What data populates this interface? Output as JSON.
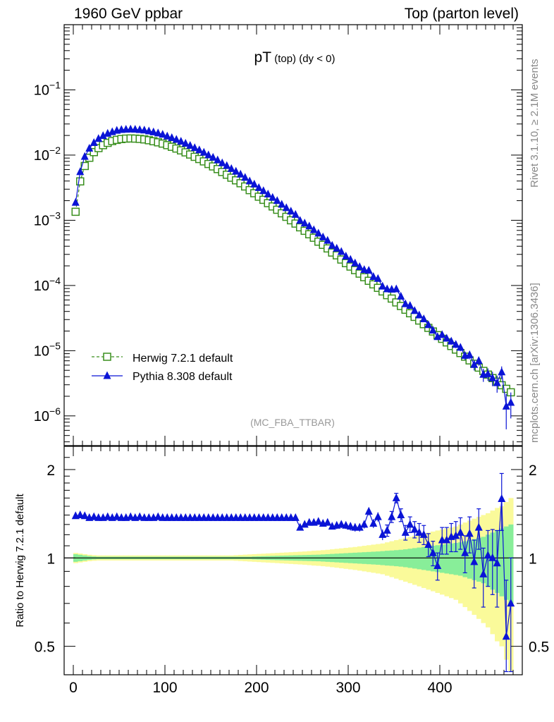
{
  "header": {
    "left": "1960 GeV ppbar",
    "right": "Top (parton level)"
  },
  "side_labels": {
    "rivet": "Rivet 3.1.10, ≥ 2.1M events",
    "mcplots": "mcplots.cern.ch [arXiv:1306.3436]"
  },
  "colors": {
    "herwig": "#3a8f1e",
    "pythia": "#0a14d6",
    "band_inner": "#88ee99",
    "band_outer": "#fafa9a"
  },
  "chart_data": [
    {
      "type": "line",
      "panel": "main",
      "title_main": "pT",
      "title_sub": "(top) (dy < 0)",
      "watermark": "(MC_FBA_TTBAR)",
      "yscale": "log",
      "xlim": [
        -10,
        490
      ],
      "ylim": [
        3.5e-07,
        1.0
      ],
      "y_ticks": [
        {
          "v": 1e-06,
          "base": "10",
          "exp": "−6"
        },
        {
          "v": 1e-05,
          "base": "10",
          "exp": "−5"
        },
        {
          "v": 0.0001,
          "base": "10",
          "exp": "−4"
        },
        {
          "v": 0.001,
          "base": "10",
          "exp": "−3"
        },
        {
          "v": 0.01,
          "base": "10",
          "exp": "−2"
        },
        {
          "v": 0.1,
          "base": "10",
          "exp": "−1"
        }
      ],
      "legend_position": "bottom-left",
      "series": [
        {
          "name": "Herwig 7.2.1 default",
          "marker": "open-square",
          "line": "dashed",
          "x": [
            2.5,
            7.5,
            12.5,
            17.5,
            22.5,
            27.5,
            32.5,
            37.5,
            42.5,
            47.5,
            52.5,
            57.5,
            62.5,
            67.5,
            72.5,
            77.5,
            82.5,
            87.5,
            92.5,
            97.5,
            102.5,
            107.5,
            112.5,
            117.5,
            122.5,
            127.5,
            132.5,
            137.5,
            142.5,
            147.5,
            152.5,
            157.5,
            162.5,
            167.5,
            172.5,
            177.5,
            182.5,
            187.5,
            192.5,
            197.5,
            202.5,
            207.5,
            212.5,
            217.5,
            222.5,
            227.5,
            232.5,
            237.5,
            242.5,
            247.5,
            252.5,
            257.5,
            262.5,
            267.5,
            272.5,
            277.5,
            282.5,
            287.5,
            292.5,
            297.5,
            302.5,
            307.5,
            312.5,
            317.5,
            322.5,
            327.5,
            332.5,
            337.5,
            342.5,
            347.5,
            352.5,
            357.5,
            362.5,
            367.5,
            372.5,
            377.5,
            382.5,
            387.5,
            392.5,
            397.5,
            402.5,
            407.5,
            412.5,
            417.5,
            422.5,
            427.5,
            432.5,
            437.5,
            442.5,
            447.5,
            452.5,
            457.5,
            462.5,
            467.5,
            472.5,
            477.5
          ],
          "y": [
            0.00135,
            0.00395,
            0.0068,
            0.0091,
            0.0111,
            0.0128,
            0.0142,
            0.0154,
            0.0164,
            0.0171,
            0.0176,
            0.0179,
            0.018,
            0.0179,
            0.0177,
            0.0174,
            0.0169,
            0.0163,
            0.0157,
            0.015,
            0.0142,
            0.0134,
            0.0126,
            0.0118,
            0.011,
            0.0102,
            0.0094,
            0.0087,
            0.008,
            0.0073,
            0.0067,
            0.0061,
            0.0055,
            0.005,
            0.0045,
            0.0041,
            0.0037,
            0.0033,
            0.0029,
            0.0026,
            0.0023,
            0.00206,
            0.00183,
            0.00163,
            0.00145,
            0.00128,
            0.00113,
            0.001,
            0.00089,
            0.00078,
            0.00069,
            0.00061,
            0.00054,
            0.00047,
            0.00042,
            0.00037,
            0.00032,
            0.00029,
            0.00025,
            0.00022,
            0.000195,
            0.000172,
            0.000152,
            0.000134,
            0.000118,
            0.000104,
            9.2e-05,
            8.1e-05,
            7.1e-05,
            6.3e-05,
            5.5e-05,
            4.85e-05,
            4.25e-05,
            3.75e-05,
            3.3e-05,
            2.9e-05,
            2.55e-05,
            2.24e-05,
            1.97e-05,
            1.73e-05,
            1.52e-05,
            1.34e-05,
            1.18e-05,
            1.04e-05,
            9.2e-06,
            8.1e-06,
            7.1e-06,
            6.3e-06,
            5.5e-06,
            4.9e-06,
            4.3e-06,
            3.8e-06,
            3.35e-06,
            2.95e-06,
            2.6e-06,
            2.3e-06
          ]
        },
        {
          "name": "Pythia 8.308 default",
          "marker": "filled-triangle",
          "line": "solid",
          "x": [
            2.5,
            7.5,
            12.5,
            17.5,
            22.5,
            27.5,
            32.5,
            37.5,
            42.5,
            47.5,
            52.5,
            57.5,
            62.5,
            67.5,
            72.5,
            77.5,
            82.5,
            87.5,
            92.5,
            97.5,
            102.5,
            107.5,
            112.5,
            117.5,
            122.5,
            127.5,
            132.5,
            137.5,
            142.5,
            147.5,
            152.5,
            157.5,
            162.5,
            167.5,
            172.5,
            177.5,
            182.5,
            187.5,
            192.5,
            197.5,
            202.5,
            207.5,
            212.5,
            217.5,
            222.5,
            227.5,
            232.5,
            237.5,
            242.5,
            247.5,
            252.5,
            257.5,
            262.5,
            267.5,
            272.5,
            277.5,
            282.5,
            287.5,
            292.5,
            297.5,
            302.5,
            307.5,
            312.5,
            317.5,
            322.5,
            327.5,
            332.5,
            337.5,
            342.5,
            347.5,
            352.5,
            357.5,
            362.5,
            367.5,
            372.5,
            377.5,
            382.5,
            387.5,
            392.5,
            397.5,
            402.5,
            407.5,
            412.5,
            417.5,
            422.5,
            427.5,
            432.5,
            437.5,
            442.5,
            447.5,
            452.5,
            457.5,
            462.5,
            467.5,
            472.5,
            477.5
          ],
          "y": [
            0.00187,
            0.00553,
            0.00948,
            0.01266,
            0.01543,
            0.01779,
            0.01974,
            0.02141,
            0.02263,
            0.02377,
            0.02446,
            0.0247,
            0.02484,
            0.0247,
            0.02443,
            0.02401,
            0.02332,
            0.02249,
            0.02167,
            0.0207,
            0.01945,
            0.01836,
            0.01726,
            0.01617,
            0.01507,
            0.01397,
            0.01288,
            0.01192,
            0.01096,
            0.01,
            0.00918,
            0.00836,
            0.00754,
            0.00685,
            0.00617,
            0.00562,
            0.00507,
            0.00452,
            0.00397,
            0.00356,
            0.00315,
            0.00282,
            0.00251,
            0.00223,
            0.00199,
            0.00175,
            0.00155,
            0.00137,
            0.00122,
            0.00099,
            0.0009,
            0.00081,
            0.00071,
            0.00063,
            0.00055,
            0.00049,
            0.00041,
            0.00037,
            0.00033,
            0.00028,
            0.00025,
            0.00022,
            0.000193,
            0.000174,
            0.00017,
            0.000136,
            0.000127,
            9.7e-05,
            8.8e-05,
            8.7e-05,
            8.8e-05,
            6.8e-05,
            5.2e-05,
            4.9e-05,
            4.1e-05,
            3.5e-05,
            3.06e-05,
            2.49e-05,
            2.05e-05,
            1.63e-05,
            1.75e-05,
            1.54e-05,
            1.39e-05,
            1.24e-05,
            1.12e-05,
            8.4e-06,
            8.6e-06,
            6.1e-06,
            7e-06,
            4.3e-06,
            4.4e-06,
            3.8e-06,
            3.2e-06,
            4.7e-06,
            1.4e-06,
            1.6e-06
          ]
        }
      ]
    },
    {
      "type": "line",
      "panel": "ratio",
      "ylabel": "Ratio to Herwig 7.2.1 default",
      "yscale": "log",
      "xlim": [
        -10,
        490
      ],
      "ylim": [
        0.4,
        2.4
      ],
      "y_ticks": [
        0.5,
        1,
        2
      ],
      "x_ticks": [
        0,
        100,
        200,
        300,
        400
      ],
      "reference": 1,
      "band_inner_halfwidth": [
        0.03,
        0.025,
        0.02,
        0.015,
        0.012,
        0.01,
        0.01,
        0.01,
        0.01,
        0.01,
        0.01,
        0.01,
        0.01,
        0.01,
        0.01,
        0.01,
        0.01,
        0.01,
        0.01,
        0.01,
        0.01,
        0.01,
        0.01,
        0.01,
        0.01,
        0.01,
        0.01,
        0.01,
        0.01,
        0.01,
        0.01,
        0.01,
        0.01,
        0.01,
        0.01,
        0.01,
        0.01,
        0.01,
        0.01,
        0.012,
        0.013,
        0.014,
        0.015,
        0.016,
        0.017,
        0.018,
        0.019,
        0.02,
        0.021,
        0.022,
        0.023,
        0.024,
        0.025,
        0.026,
        0.028,
        0.03,
        0.032,
        0.034,
        0.036,
        0.038,
        0.04,
        0.042,
        0.044,
        0.046,
        0.048,
        0.05,
        0.052,
        0.055,
        0.058,
        0.06,
        0.063,
        0.066,
        0.07,
        0.075,
        0.08,
        0.085,
        0.09,
        0.095,
        0.1,
        0.105,
        0.11,
        0.115,
        0.12,
        0.125,
        0.13,
        0.14,
        0.15,
        0.16,
        0.17,
        0.18,
        0.2,
        0.22,
        0.24,
        0.26,
        0.28,
        0.3
      ],
      "band_outer_halfwidth": [
        0.04,
        0.035,
        0.03,
        0.025,
        0.022,
        0.02,
        0.02,
        0.02,
        0.02,
        0.02,
        0.02,
        0.02,
        0.02,
        0.02,
        0.02,
        0.02,
        0.02,
        0.02,
        0.02,
        0.02,
        0.02,
        0.02,
        0.02,
        0.02,
        0.02,
        0.02,
        0.02,
        0.02,
        0.02,
        0.02,
        0.02,
        0.02,
        0.02,
        0.02,
        0.02,
        0.022,
        0.024,
        0.026,
        0.028,
        0.03,
        0.032,
        0.034,
        0.036,
        0.038,
        0.04,
        0.042,
        0.044,
        0.046,
        0.048,
        0.05,
        0.052,
        0.055,
        0.058,
        0.06,
        0.063,
        0.066,
        0.07,
        0.074,
        0.078,
        0.082,
        0.086,
        0.09,
        0.095,
        0.1,
        0.105,
        0.11,
        0.115,
        0.12,
        0.13,
        0.14,
        0.15,
        0.16,
        0.17,
        0.18,
        0.19,
        0.2,
        0.21,
        0.22,
        0.23,
        0.24,
        0.25,
        0.26,
        0.27,
        0.28,
        0.3,
        0.32,
        0.34,
        0.36,
        0.38,
        0.4,
        0.42,
        0.45,
        0.48,
        0.5,
        0.55,
        0.6
      ],
      "series": [
        {
          "name": "Pythia 8.308 default",
          "y": [
            1.39,
            1.4,
            1.39,
            1.37,
            1.38,
            1.37,
            1.37,
            1.38,
            1.37,
            1.38,
            1.37,
            1.37,
            1.38,
            1.37,
            1.38,
            1.37,
            1.37,
            1.37,
            1.38,
            1.37,
            1.37,
            1.37,
            1.37,
            1.37,
            1.37,
            1.37,
            1.37,
            1.37,
            1.37,
            1.37,
            1.37,
            1.37,
            1.37,
            1.37,
            1.37,
            1.37,
            1.37,
            1.37,
            1.37,
            1.37,
            1.37,
            1.37,
            1.37,
            1.37,
            1.37,
            1.37,
            1.37,
            1.37,
            1.37,
            1.27,
            1.3,
            1.32,
            1.32,
            1.33,
            1.31,
            1.32,
            1.28,
            1.29,
            1.3,
            1.29,
            1.28,
            1.27,
            1.27,
            1.3,
            1.44,
            1.31,
            1.38,
            1.2,
            1.24,
            1.38,
            1.6,
            1.4,
            1.22,
            1.3,
            1.25,
            1.22,
            1.2,
            1.11,
            1.04,
            0.94,
            1.15,
            1.15,
            1.18,
            1.19,
            1.22,
            1.04,
            1.21,
            0.97,
            1.27,
            0.88,
            1.02,
            1.0,
            0.96,
            1.59,
            0.54,
            0.7
          ],
          "err": [
            0.02,
            0.02,
            0.02,
            0.015,
            0.015,
            0.015,
            0.015,
            0.015,
            0.015,
            0.015,
            0.015,
            0.015,
            0.015,
            0.015,
            0.015,
            0.015,
            0.015,
            0.015,
            0.015,
            0.015,
            0.015,
            0.015,
            0.015,
            0.015,
            0.015,
            0.015,
            0.015,
            0.015,
            0.015,
            0.015,
            0.015,
            0.015,
            0.015,
            0.015,
            0.015,
            0.015,
            0.015,
            0.015,
            0.015,
            0.015,
            0.015,
            0.02,
            0.02,
            0.02,
            0.02,
            0.02,
            0.02,
            0.02,
            0.02,
            0.02,
            0.02,
            0.03,
            0.03,
            0.03,
            0.03,
            0.03,
            0.03,
            0.035,
            0.035,
            0.035,
            0.04,
            0.04,
            0.04,
            0.04,
            0.045,
            0.045,
            0.05,
            0.05,
            0.055,
            0.06,
            0.06,
            0.07,
            0.07,
            0.08,
            0.08,
            0.09,
            0.09,
            0.1,
            0.1,
            0.1,
            0.12,
            0.12,
            0.13,
            0.14,
            0.15,
            0.15,
            0.17,
            0.18,
            0.2,
            0.2,
            0.22,
            0.25,
            0.28,
            0.35,
            0.3,
            0.3
          ]
        }
      ]
    }
  ]
}
